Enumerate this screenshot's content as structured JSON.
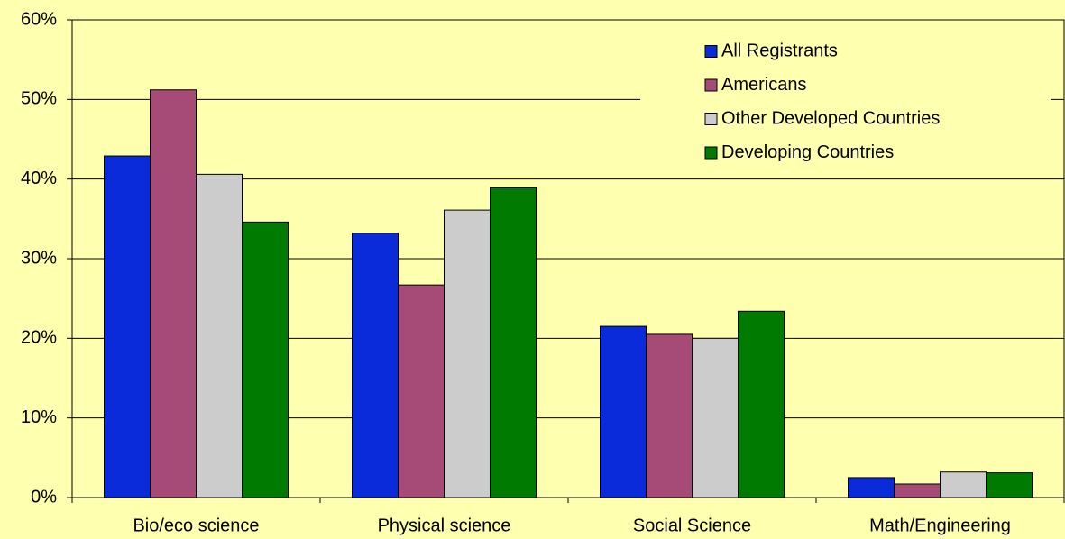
{
  "chart_data": {
    "type": "bar",
    "categories": [
      "Bio/eco science",
      "Physical science",
      "Social Science",
      "Math/Engineering"
    ],
    "series": [
      {
        "name": "All Registrants",
        "color": "#0a2bd9",
        "values": [
          42.9,
          33.2,
          21.5,
          2.5
        ]
      },
      {
        "name": "Americans",
        "color": "#a64a78",
        "values": [
          51.2,
          26.7,
          20.5,
          1.7
        ]
      },
      {
        "name": "Other Developed Countries",
        "color": "#cccccc",
        "values": [
          40.6,
          36.1,
          20.0,
          3.2
        ]
      },
      {
        "name": "Developing Countries",
        "color": "#007a00",
        "values": [
          34.6,
          38.9,
          23.4,
          3.1
        ]
      }
    ],
    "ylim": [
      0,
      60
    ],
    "yticks": [
      {
        "value": 0,
        "label": "0%"
      },
      {
        "value": 10,
        "label": "10%"
      },
      {
        "value": 20,
        "label": "20%"
      },
      {
        "value": 30,
        "label": "30%"
      },
      {
        "value": 40,
        "label": "40%"
      },
      {
        "value": 50,
        "label": "50%"
      },
      {
        "value": 60,
        "label": "60%"
      }
    ],
    "grid": true,
    "legend": "top-right"
  }
}
